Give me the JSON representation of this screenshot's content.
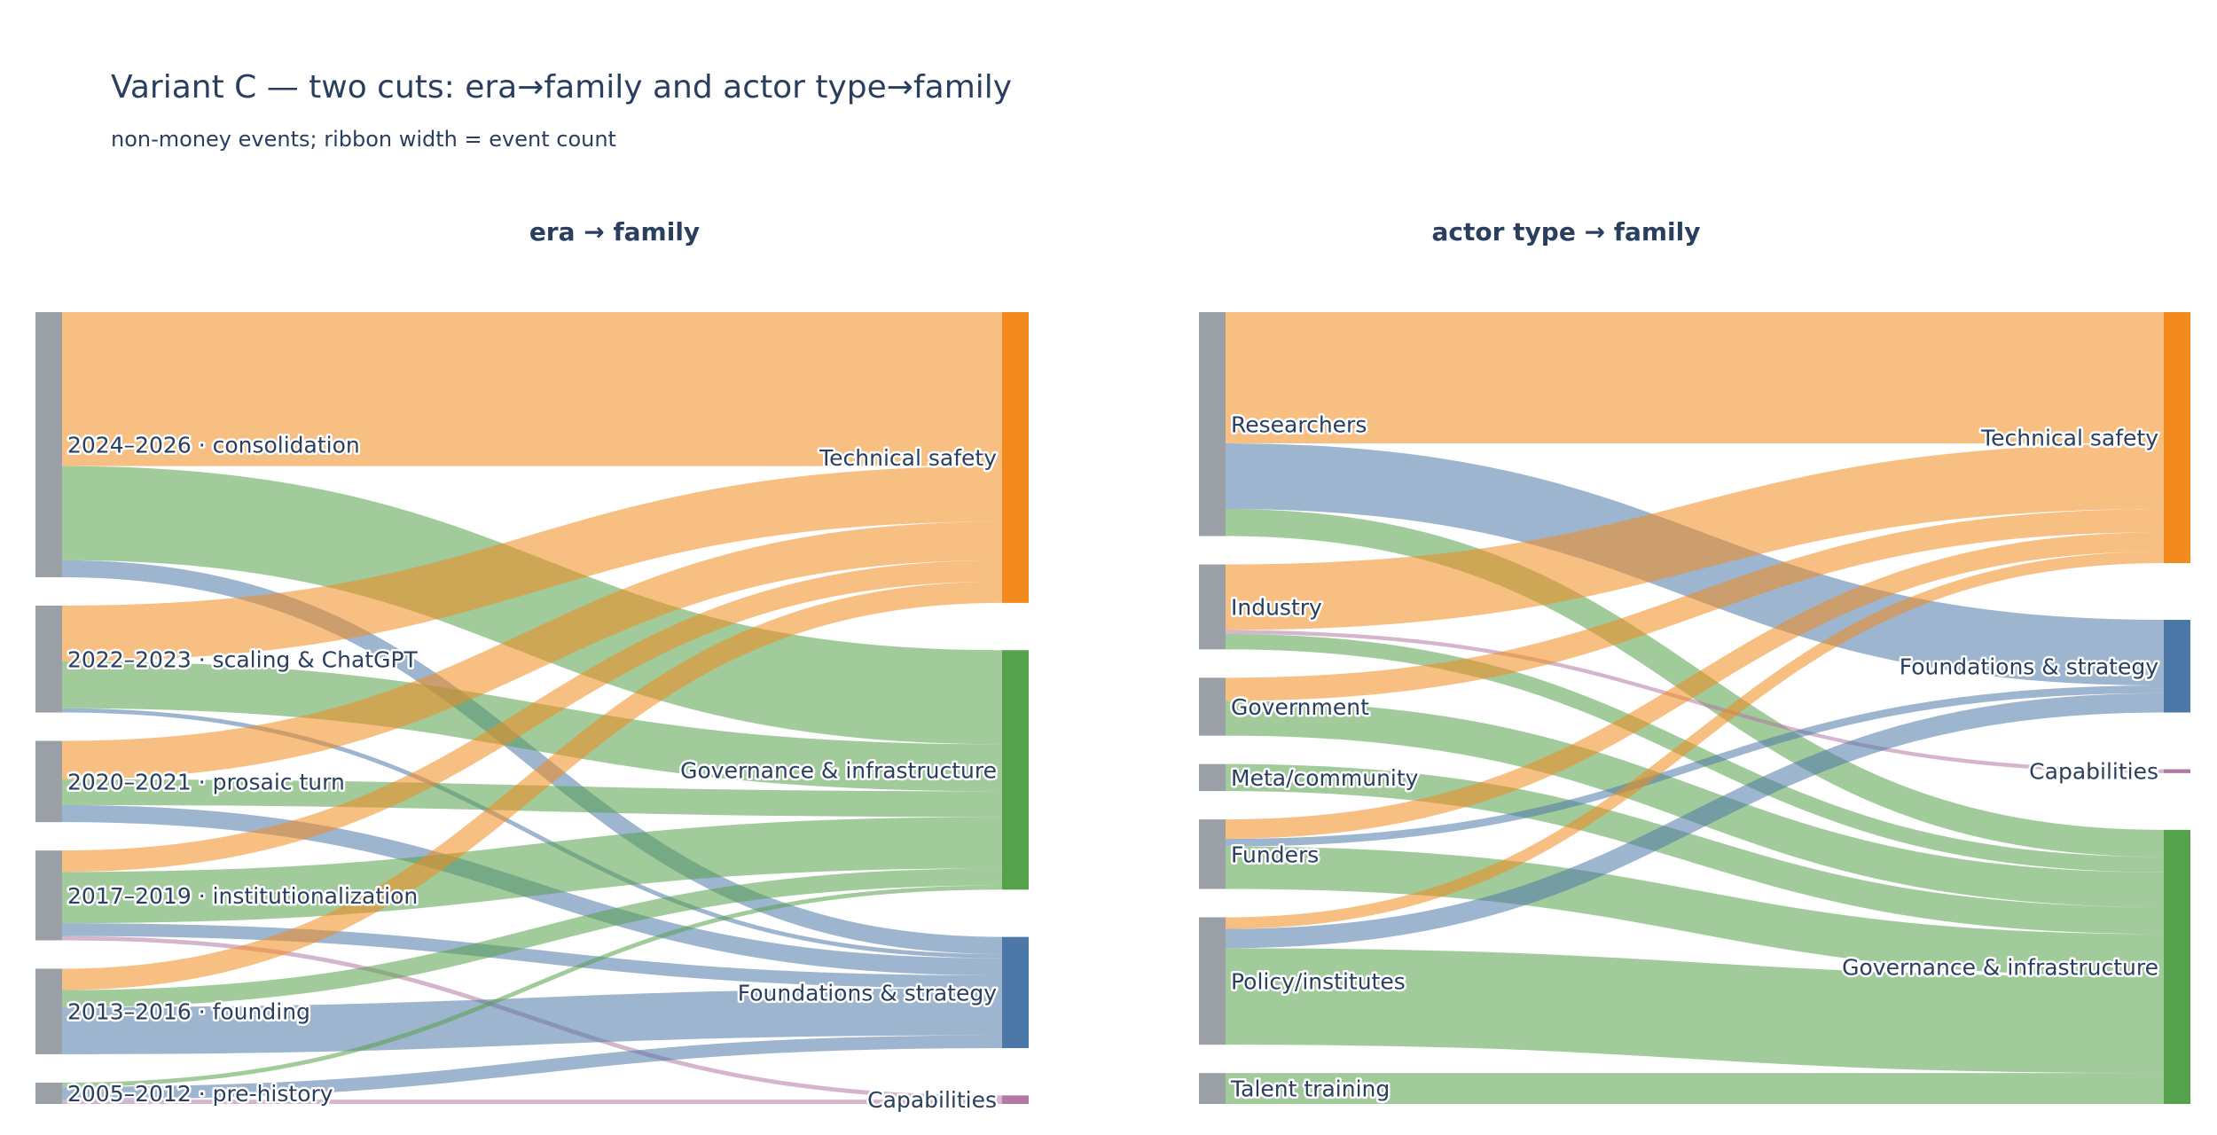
{
  "title": "Variant C — two cuts: era→family and actor type→family",
  "subtitle": "non-money events; ribbon width = event count",
  "colors": {
    "node_source": "#9aa0a6",
    "Technical safety": "#f28a1e",
    "Governance & infrastructure": "#56a14b",
    "Foundations & strategy": "#4c78a8",
    "Capabilities": "#b279a2",
    "link_opacity": 0.55
  },
  "chart_data": [
    {
      "type": "sankey",
      "title": "era → family",
      "sources": [
        "2024–2026 · consolidation",
        "2022–2023 · scaling & ChatGPT",
        "2020–2021 · prosaic turn",
        "2017–2019 · institutionalization",
        "2013–2016 · founding",
        "2005–2012 · pre-history"
      ],
      "targets": [
        "Technical safety",
        "Governance & infrastructure",
        "Foundations & strategy",
        "Capabilities"
      ],
      "links": [
        {
          "source": "2024–2026 · consolidation",
          "target": "Technical safety",
          "value": 36
        },
        {
          "source": "2024–2026 · consolidation",
          "target": "Governance & infrastructure",
          "value": 22
        },
        {
          "source": "2024–2026 · consolidation",
          "target": "Foundations & strategy",
          "value": 4
        },
        {
          "source": "2022–2023 · scaling & ChatGPT",
          "target": "Technical safety",
          "value": 13
        },
        {
          "source": "2022–2023 · scaling & ChatGPT",
          "target": "Governance & infrastructure",
          "value": 11
        },
        {
          "source": "2022–2023 · scaling & ChatGPT",
          "target": "Foundations & strategy",
          "value": 1
        },
        {
          "source": "2020–2021 · prosaic turn",
          "target": "Technical safety",
          "value": 9
        },
        {
          "source": "2020–2021 · prosaic turn",
          "target": "Governance & infrastructure",
          "value": 6
        },
        {
          "source": "2020–2021 · prosaic turn",
          "target": "Foundations & strategy",
          "value": 4
        },
        {
          "source": "2017–2019 · institutionalization",
          "target": "Technical safety",
          "value": 5
        },
        {
          "source": "2017–2019 · institutionalization",
          "target": "Governance & infrastructure",
          "value": 12
        },
        {
          "source": "2017–2019 · institutionalization",
          "target": "Foundations & strategy",
          "value": 3
        },
        {
          "source": "2017–2019 · institutionalization",
          "target": "Capabilities",
          "value": 1
        },
        {
          "source": "2013–2016 · founding",
          "target": "Technical safety",
          "value": 5
        },
        {
          "source": "2013–2016 · founding",
          "target": "Governance & infrastructure",
          "value": 4
        },
        {
          "source": "2013–2016 · founding",
          "target": "Foundations & strategy",
          "value": 11
        },
        {
          "source": "2005–2012 · pre-history",
          "target": "Governance & infrastructure",
          "value": 1
        },
        {
          "source": "2005–2012 · pre-history",
          "target": "Foundations & strategy",
          "value": 3
        },
        {
          "source": "2005–2012 · pre-history",
          "target": "Capabilities",
          "value": 1
        }
      ]
    },
    {
      "type": "sankey",
      "title": "actor type → family",
      "sources": [
        "Researchers",
        "Industry",
        "Government",
        "Meta/community",
        "Funders",
        "Policy/institutes",
        "Talent training"
      ],
      "targets": [
        "Technical safety",
        "Foundations & strategy",
        "Capabilities",
        "Governance & infrastructure"
      ],
      "links": [
        {
          "source": "Researchers",
          "target": "Technical safety",
          "value": 34
        },
        {
          "source": "Researchers",
          "target": "Foundations & strategy",
          "value": 17
        },
        {
          "source": "Researchers",
          "target": "Governance & infrastructure",
          "value": 7
        },
        {
          "source": "Industry",
          "target": "Technical safety",
          "value": 17
        },
        {
          "source": "Industry",
          "target": "Capabilities",
          "value": 1
        },
        {
          "source": "Industry",
          "target": "Governance & infrastructure",
          "value": 4
        },
        {
          "source": "Government",
          "target": "Technical safety",
          "value": 6
        },
        {
          "source": "Government",
          "target": "Governance & infrastructure",
          "value": 9
        },
        {
          "source": "Meta/community",
          "target": "Governance & infrastructure",
          "value": 7
        },
        {
          "source": "Funders",
          "target": "Technical safety",
          "value": 5
        },
        {
          "source": "Funders",
          "target": "Foundations & strategy",
          "value": 2
        },
        {
          "source": "Funders",
          "target": "Governance & infrastructure",
          "value": 11
        },
        {
          "source": "Policy/institutes",
          "target": "Technical safety",
          "value": 3
        },
        {
          "source": "Policy/institutes",
          "target": "Foundations & strategy",
          "value": 5
        },
        {
          "source": "Policy/institutes",
          "target": "Governance & infrastructure",
          "value": 25
        },
        {
          "source": "Talent training",
          "target": "Governance & infrastructure",
          "value": 8
        }
      ]
    }
  ]
}
